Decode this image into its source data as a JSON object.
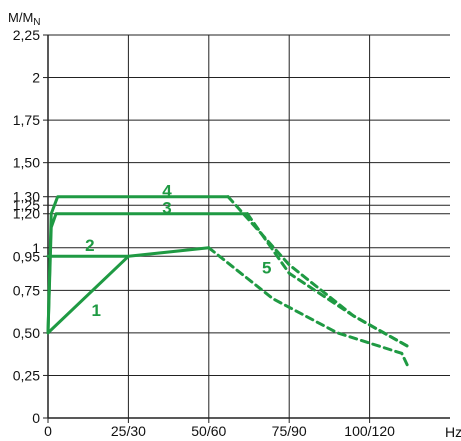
{
  "chart_data": {
    "type": "line",
    "ylabel_main": "M/M",
    "ylabel_sub": "N",
    "xlabel": "Hz",
    "x_ticks": [
      "0",
      "25/30",
      "50/60",
      "75/90",
      "100/120"
    ],
    "x_tick_values": [
      0,
      25,
      50,
      75,
      100
    ],
    "y_ticks": [
      "0",
      "0,25",
      "0,50",
      "0,75",
      "0,95",
      "1",
      "1,20",
      "1,25",
      "1,30",
      "1,50",
      "1,75",
      "2",
      "2,25"
    ],
    "y_tick_values": [
      0,
      0.25,
      0.5,
      0.75,
      0.95,
      1,
      1.2,
      1.25,
      1.3,
      1.5,
      1.75,
      2,
      2.25
    ],
    "xlim": [
      0,
      125
    ],
    "ylim": [
      0,
      2.25
    ],
    "grid": true,
    "series": [
      {
        "label": "1",
        "segments": [
          {
            "style": "solid",
            "points": [
              [
                0,
                0.5
              ],
              [
                25,
                0.95
              ],
              [
                50,
                1.0
              ]
            ]
          },
          {
            "style": "dashed",
            "points": [
              [
                50,
                1.0
              ],
              [
                70,
                0.7
              ],
              [
                90,
                0.5
              ],
              [
                110,
                0.38
              ],
              [
                112,
                0.3
              ]
            ]
          }
        ]
      },
      {
        "label": "2",
        "segments": [
          {
            "style": "solid",
            "points": [
              [
                0,
                0.95
              ],
              [
                25,
                0.95
              ]
            ]
          }
        ]
      },
      {
        "label": "3",
        "segments": [
          {
            "style": "solid",
            "points": [
              [
                0,
                0.5
              ],
              [
                1,
                1.12
              ],
              [
                2.5,
                1.2
              ],
              [
                62,
                1.2
              ]
            ]
          },
          {
            "style": "dashed",
            "points": [
              [
                62,
                1.2
              ],
              [
                75,
                0.85
              ],
              [
                95,
                0.6
              ],
              [
                112,
                0.42
              ]
            ]
          }
        ]
      },
      {
        "label": "4",
        "segments": [
          {
            "style": "solid",
            "points": [
              [
                0,
                0.5
              ],
              [
                1,
                1.2
              ],
              [
                3,
                1.3
              ],
              [
                56,
                1.3
              ]
            ]
          },
          {
            "style": "dashed",
            "points": [
              [
                56,
                1.3
              ],
              [
                75,
                0.9
              ],
              [
                95,
                0.6
              ],
              [
                112,
                0.42
              ]
            ]
          }
        ]
      }
    ],
    "annotations": [
      {
        "text": "1",
        "x": 15,
        "y": 0.6
      },
      {
        "text": "2",
        "x": 13,
        "y": 0.98
      },
      {
        "text": "3",
        "x": 37,
        "y": 1.2
      },
      {
        "text": "4",
        "x": 37,
        "y": 1.3
      },
      {
        "text": "5",
        "x": 68,
        "y": 0.85
      }
    ],
    "colors": {
      "curve": "#1f9a43",
      "grid": "#222222",
      "axis": "#222222"
    }
  }
}
